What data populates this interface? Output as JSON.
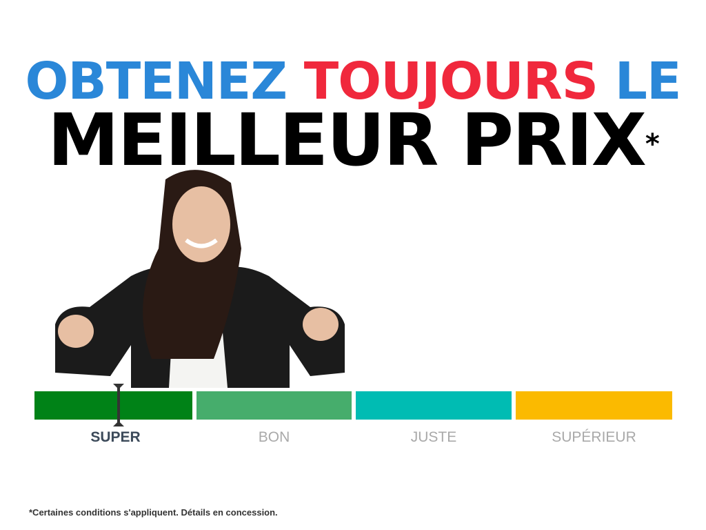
{
  "headline": {
    "part1": "OBTENEZ",
    "part2": "TOUJOURS",
    "part3": "LE",
    "line2": "MEILLEUR PRIX",
    "asterisk": "*"
  },
  "colors": {
    "blue": "#2a87d8",
    "red": "#f0283c",
    "black": "#000000"
  },
  "price_scale": {
    "selected": "SUPER",
    "segments": [
      {
        "label": "SUPER",
        "color": "#008217"
      },
      {
        "label": "BON",
        "color": "#46ad6c"
      },
      {
        "label": "JUSTE",
        "color": "#00bcb3"
      },
      {
        "label": "SUPÉRIEUR",
        "color": "#fbba00"
      }
    ]
  },
  "footnote": "*Certaines conditions s'appliquent. Détails en concession."
}
